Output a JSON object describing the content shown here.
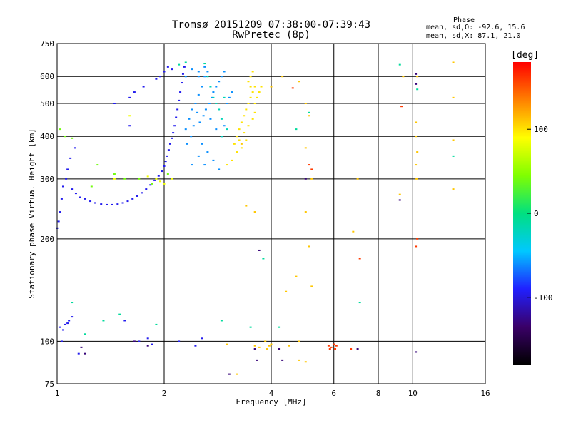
{
  "header": {
    "title": "Tromsø 20151209 07:38:00-07:39:43",
    "subtitle": "RwPretec (8p)",
    "phase_title": "Phase",
    "phase_stats_o": "mean, sd,O: -92.6, 15.6",
    "phase_stats_x": "mean, sd,X:  87.1, 21.0"
  },
  "colorbar": {
    "label": "[deg]",
    "ticks": [
      "100",
      "0",
      "-100"
    ],
    "tick_values": [
      100,
      0,
      -100
    ],
    "range": [
      -180,
      180
    ],
    "colors": [
      "#000000",
      "#3a0068",
      "#2020ff",
      "#00c8ff",
      "#00e080",
      "#80ff00",
      "#ffff00",
      "#ff8000",
      "#ff0000"
    ]
  },
  "chart_data": {
    "type": "scatter",
    "title": "Tromsø 20151209 07:38:00-07:39:43",
    "subtitle": "RwPretec (8p)",
    "xlabel": "Frequency [MHz]",
    "ylabel": "Stationary phase Virtual Height [km]",
    "x_scale": "log",
    "y_scale": "log",
    "xlim": [
      1,
      16
    ],
    "ylim": [
      75,
      750
    ],
    "x_ticks": [
      1,
      2,
      4,
      6,
      8,
      10,
      16
    ],
    "x_tick_labels": [
      "1",
      "2",
      "4",
      "6",
      "8",
      "10",
      "16"
    ],
    "y_ticks": [
      75,
      100,
      200,
      300,
      400,
      500,
      600,
      750
    ],
    "y_tick_labels": [
      "75",
      "100",
      "200",
      "300",
      "400",
      "500",
      "600",
      "750"
    ],
    "grid": true,
    "color_by": "phase [deg]",
    "series": [
      {
        "values": [
          [
            1.0,
            215
          ],
          [
            1.01,
            225
          ],
          [
            1.02,
            240
          ],
          [
            1.03,
            262
          ],
          [
            1.04,
            285
          ],
          [
            1.06,
            300
          ],
          [
            1.07,
            320
          ],
          [
            1.09,
            345
          ],
          [
            1.12,
            370
          ],
          [
            1.1,
            280
          ],
          [
            1.13,
            272
          ],
          [
            1.16,
            265
          ],
          [
            1.2,
            262
          ],
          [
            1.24,
            258
          ],
          [
            1.28,
            255
          ],
          [
            1.33,
            253
          ],
          [
            1.38,
            252
          ],
          [
            1.43,
            252
          ],
          [
            1.48,
            253
          ],
          [
            1.53,
            255
          ],
          [
            1.58,
            258
          ],
          [
            1.63,
            262
          ],
          [
            1.68,
            267
          ],
          [
            1.73,
            273
          ],
          [
            1.78,
            280
          ],
          [
            1.83,
            288
          ],
          [
            1.88,
            297
          ],
          [
            1.93,
            306
          ],
          [
            1.97,
            316
          ],
          [
            2.0,
            327
          ],
          [
            2.02,
            338
          ],
          [
            2.04,
            350
          ],
          [
            2.06,
            365
          ],
          [
            2.08,
            380
          ],
          [
            2.1,
            395
          ],
          [
            2.12,
            410
          ],
          [
            2.14,
            430
          ],
          [
            2.16,
            455
          ],
          [
            2.18,
            480
          ],
          [
            2.2,
            510
          ],
          [
            2.22,
            540
          ],
          [
            2.24,
            575
          ],
          [
            2.26,
            610
          ],
          [
            2.28,
            640
          ],
          [
            1.05,
            112
          ],
          [
            1.08,
            115
          ],
          [
            1.1,
            118
          ],
          [
            1.02,
            110
          ],
          [
            1.04,
            108
          ],
          [
            1.07,
            113
          ],
          [
            1.03,
            100
          ],
          [
            1.15,
            92
          ],
          [
            1.45,
            500
          ],
          [
            1.6,
            520
          ],
          [
            1.65,
            540
          ],
          [
            1.75,
            560
          ],
          [
            1.9,
            590
          ],
          [
            1.95,
            600
          ],
          [
            2.0,
            620
          ],
          [
            2.05,
            640
          ],
          [
            2.1,
            630
          ],
          [
            1.6,
            430
          ],
          [
            1.55,
            115
          ],
          [
            1.7,
            100
          ],
          [
            1.8,
            102
          ],
          [
            1.85,
            98
          ],
          [
            2.2,
            100
          ],
          [
            2.45,
            97
          ],
          [
            2.55,
            102
          ]
        ],
        "phase": -95
      },
      {
        "values": [
          [
            2.3,
            420
          ],
          [
            2.35,
            450
          ],
          [
            2.4,
            480
          ],
          [
            2.45,
            500
          ],
          [
            2.5,
            530
          ],
          [
            2.55,
            560
          ],
          [
            2.6,
            600
          ],
          [
            2.65,
            620
          ],
          [
            2.32,
            380
          ],
          [
            2.38,
            400
          ],
          [
            2.42,
            430
          ],
          [
            2.48,
            470
          ],
          [
            2.52,
            440
          ],
          [
            2.58,
            460
          ],
          [
            2.62,
            480
          ],
          [
            2.68,
            500
          ],
          [
            2.72,
            520
          ],
          [
            2.75,
            540
          ],
          [
            2.8,
            560
          ],
          [
            2.85,
            580
          ],
          [
            2.9,
            600
          ],
          [
            2.95,
            620
          ],
          [
            2.7,
            450
          ],
          [
            2.8,
            420
          ],
          [
            2.9,
            400
          ],
          [
            2.95,
            430
          ],
          [
            2.5,
            600
          ],
          [
            2.6,
            640
          ],
          [
            2.3,
            600
          ],
          [
            2.4,
            630
          ],
          [
            2.5,
            620
          ],
          [
            2.55,
            380
          ],
          [
            2.65,
            360
          ],
          [
            2.75,
            340
          ],
          [
            2.85,
            320
          ],
          [
            3.0,
            500
          ],
          [
            3.05,
            520
          ],
          [
            3.1,
            540
          ],
          [
            2.4,
            330
          ],
          [
            2.5,
            350
          ],
          [
            2.6,
            330
          ]
        ],
        "phase": -60
      },
      {
        "values": [
          [
            2.7,
            560
          ],
          [
            2.75,
            520
          ],
          [
            2.85,
            480
          ],
          [
            2.9,
            450
          ],
          [
            2.8,
            500
          ],
          [
            2.95,
            520
          ],
          [
            2.9,
            400
          ],
          [
            3.0,
            420
          ],
          [
            2.65,
            600
          ]
        ],
        "phase": -20
      },
      {
        "values": [
          [
            3.15,
            380
          ],
          [
            3.2,
            400
          ],
          [
            3.25,
            420
          ],
          [
            3.3,
            440
          ],
          [
            3.35,
            460
          ],
          [
            3.4,
            480
          ],
          [
            3.45,
            500
          ],
          [
            3.5,
            520
          ],
          [
            3.55,
            540
          ],
          [
            3.5,
            560
          ],
          [
            3.45,
            580
          ],
          [
            3.5,
            600
          ],
          [
            3.55,
            620
          ],
          [
            3.4,
            390
          ],
          [
            3.3,
            370
          ],
          [
            3.2,
            360
          ],
          [
            3.25,
            390
          ],
          [
            3.35,
            410
          ],
          [
            3.45,
            430
          ],
          [
            3.55,
            450
          ],
          [
            3.6,
            470
          ],
          [
            3.6,
            500
          ],
          [
            3.1,
            340
          ],
          [
            3.0,
            330
          ],
          [
            3.65,
            520
          ],
          [
            3.6,
            560
          ],
          [
            3.7,
            540
          ],
          [
            3.75,
            560
          ]
        ],
        "phase": 100
      },
      {
        "values": [
          [
            3.9,
            95
          ],
          [
            3.95,
            97
          ],
          [
            3.6,
            97
          ],
          [
            3.7,
            96
          ],
          [
            3.85,
            100
          ],
          [
            4.0,
            98
          ],
          [
            4.8,
            88
          ],
          [
            5.0,
            87
          ],
          [
            4.5,
            97
          ],
          [
            4.0,
            560
          ],
          [
            4.3,
            600
          ],
          [
            4.8,
            580
          ],
          [
            5.0,
            500
          ],
          [
            5.1,
            460
          ],
          [
            5.0,
            370
          ],
          [
            5.2,
            300
          ],
          [
            5.0,
            240
          ],
          [
            5.1,
            190
          ],
          [
            5.2,
            145
          ],
          [
            4.7,
            155
          ],
          [
            4.4,
            140
          ],
          [
            4.8,
            100
          ],
          [
            3.6,
            240
          ],
          [
            3.4,
            250
          ],
          [
            3.3,
            380
          ],
          [
            3.2,
            80
          ],
          [
            3.0,
            98
          ],
          [
            9.2,
            270
          ],
          [
            10.2,
            440
          ],
          [
            10.2,
            400
          ],
          [
            10.3,
            360
          ],
          [
            10.2,
            330
          ],
          [
            10.25,
            300
          ],
          [
            13.0,
            660
          ],
          [
            13.0,
            520
          ],
          [
            13.0,
            390
          ],
          [
            13.0,
            280
          ],
          [
            10.3,
            600
          ],
          [
            9.4,
            600
          ],
          [
            7.0,
            300
          ],
          [
            6.8,
            210
          ]
        ],
        "phase": 110
      },
      {
        "values": [
          [
            5.8,
            97
          ],
          [
            5.9,
            96
          ],
          [
            6.0,
            98
          ],
          [
            6.1,
            97
          ],
          [
            6.05,
            95
          ],
          [
            5.85,
            95
          ],
          [
            6.7,
            95
          ],
          [
            7.1,
            175
          ],
          [
            10.2,
            190
          ],
          [
            10.3,
            200
          ],
          [
            9.3,
            490
          ],
          [
            5.2,
            320
          ],
          [
            5.1,
            330
          ],
          [
            4.6,
            555
          ]
        ],
        "phase": 160
      },
      {
        "values": [
          [
            2.2,
            650
          ],
          [
            2.3,
            660
          ],
          [
            2.6,
            655
          ],
          [
            3.8,
            175
          ],
          [
            4.2,
            110
          ],
          [
            3.5,
            110
          ],
          [
            2.9,
            115
          ],
          [
            1.9,
            112
          ],
          [
            1.1,
            130
          ],
          [
            1.2,
            105
          ],
          [
            1.35,
            115
          ],
          [
            1.5,
            120
          ],
          [
            10.3,
            550
          ],
          [
            9.2,
            650
          ],
          [
            7.1,
            130
          ],
          [
            13.0,
            350
          ],
          [
            4.7,
            420
          ],
          [
            5.1,
            470
          ]
        ],
        "phase": -10
      },
      {
        "values": [
          [
            1.02,
            420
          ],
          [
            1.05,
            400
          ],
          [
            1.1,
            395
          ],
          [
            1.3,
            330
          ],
          [
            1.45,
            310
          ],
          [
            1.7,
            300
          ],
          [
            1.85,
            290
          ],
          [
            2.05,
            310
          ],
          [
            1.25,
            285
          ],
          [
            1.55,
            300
          ]
        ],
        "phase": 40
      },
      {
        "values": [
          [
            1.6,
            460
          ],
          [
            1.45,
            300
          ],
          [
            1.8,
            305
          ],
          [
            1.95,
            295
          ],
          [
            2.1,
            300
          ],
          [
            2.0,
            290
          ],
          [
            1.9,
            300
          ]
        ],
        "phase": 85
      },
      {
        "values": [
          [
            1.2,
            92
          ],
          [
            1.17,
            96
          ],
          [
            1.65,
            100
          ],
          [
            1.8,
            97
          ],
          [
            3.05,
            80
          ],
          [
            3.6,
            95
          ],
          [
            10.2,
            93
          ],
          [
            9.2,
            260
          ],
          [
            10.2,
            570
          ],
          [
            10.2,
            610
          ],
          [
            7.0,
            95
          ],
          [
            4.3,
            88
          ],
          [
            4.2,
            95
          ],
          [
            3.65,
            88
          ],
          [
            3.7,
            185
          ],
          [
            5.0,
            300
          ]
        ],
        "phase": -130
      }
    ]
  }
}
